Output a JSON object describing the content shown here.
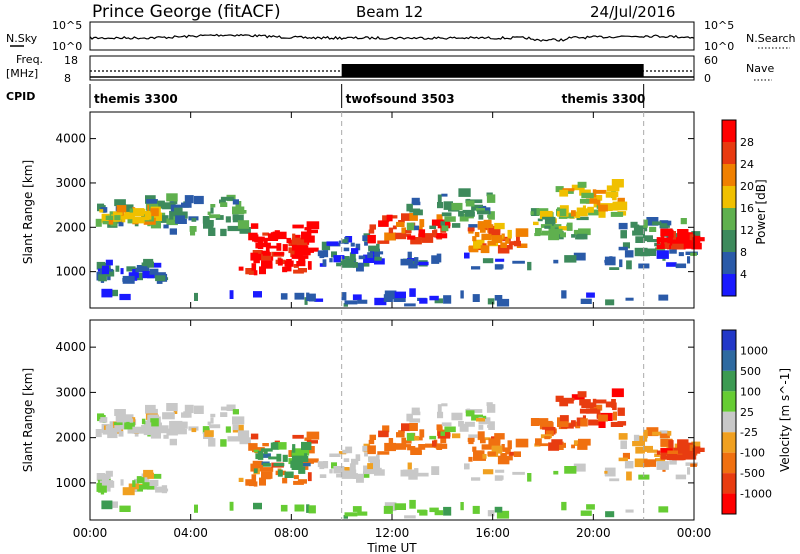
{
  "header": {
    "station": "Prince George (fitACF)",
    "beam": "Beam 12",
    "date": "24/Jul/2016"
  },
  "top_panels": {
    "nsky_label": "N.Sky",
    "nsky_ticks": [
      "10^5",
      "10^0"
    ],
    "nsearch_label": "N.Search",
    "nsearch_ticks": [
      "10^5",
      "10^0"
    ],
    "freq_label_1": "Freq.",
    "freq_label_2": "[MHz]",
    "freq_ticks": [
      "18",
      "8"
    ],
    "nave_label": "Nave",
    "nave_ticks": [
      "60",
      "0"
    ],
    "cpid_label": "CPID",
    "cpid_modes": [
      {
        "name": "themis 3300",
        "start_h": 0,
        "end_h": 10
      },
      {
        "name": "twofsound 3503",
        "start_h": 10,
        "end_h": 22
      },
      {
        "name": "themis 3300",
        "start_h": 22,
        "end_h": 24
      }
    ]
  },
  "x_axis": {
    "label": "Time UT",
    "ticks": [
      "00:00",
      "04:00",
      "08:00",
      "12:00",
      "16:00",
      "20:00",
      "00:00"
    ],
    "range_hours": [
      0,
      24
    ]
  },
  "chart_data": [
    {
      "type": "heatmap",
      "name": "power",
      "ylabel": "Slant Range [km]",
      "yticks": [
        "1000",
        "2000",
        "3000",
        "4000"
      ],
      "ylim": [
        180,
        4600
      ],
      "colorbar_label": "Power [dB]",
      "colorbar_ticks": [
        "4",
        "8",
        "12",
        "16",
        "20",
        "24",
        "28"
      ],
      "colorbar_range": [
        0,
        32
      ],
      "colors": [
        "#1a1aff",
        "#2a5aa8",
        "#3d8a5c",
        "#5fb04e",
        "#f0c000",
        "#f08000",
        "#e83a10",
        "#ff0000"
      ]
    },
    {
      "type": "heatmap",
      "name": "velocity",
      "ylabel": "Slant Range [km]",
      "yticks": [
        "1000",
        "2000",
        "3000",
        "4000"
      ],
      "ylim": [
        180,
        4600
      ],
      "colorbar_label": "Velocity [m s^-1]",
      "colorbar_ticks": [
        "1000",
        "500",
        "100",
        "25",
        "-25",
        "-100",
        "-500",
        "-1000"
      ],
      "colors": [
        "#2238c8",
        "#2e6aa0",
        "#3c9a52",
        "#66cc33",
        "#c8c8c8",
        "#f0a020",
        "#f07010",
        "#e83c10",
        "#ff0000"
      ]
    }
  ]
}
